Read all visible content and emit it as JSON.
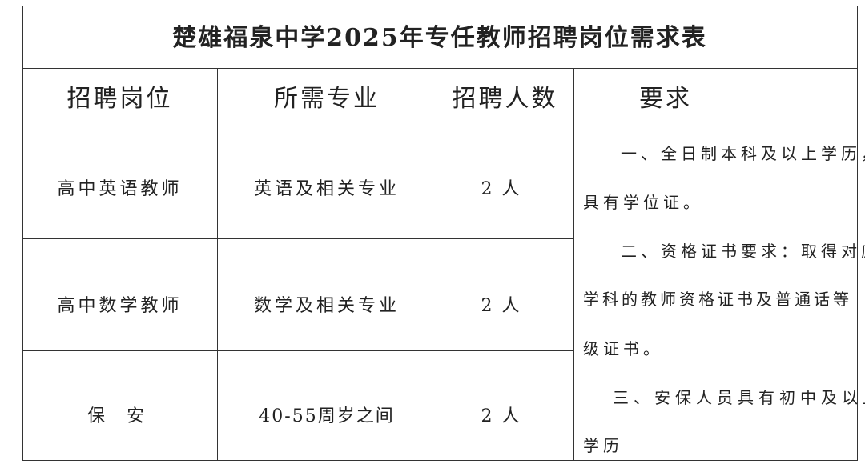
{
  "title": "楚雄福泉中学2025年专任教师招聘岗位需求表",
  "headers": [
    "招聘岗位",
    "所需专业",
    "招聘人数",
    "要求"
  ],
  "rows": [
    {
      "position": "高中英语教师",
      "major": "英语及相关专业",
      "count": "2人"
    },
    {
      "position": "高中数学教师",
      "major": "数学及相关专业",
      "count": "2人"
    },
    {
      "position": "保 安",
      "major": "40-55周岁之间",
      "count": "2人"
    }
  ],
  "requirements": [
    "一、全日制本科及以上学历，",
    "具有学位证。",
    "二、资格证书要求：取得对应",
    "学科的教师资格证书及普通话等",
    "级证书。",
    "三、安保人员具有初中及以上",
    "学历"
  ]
}
